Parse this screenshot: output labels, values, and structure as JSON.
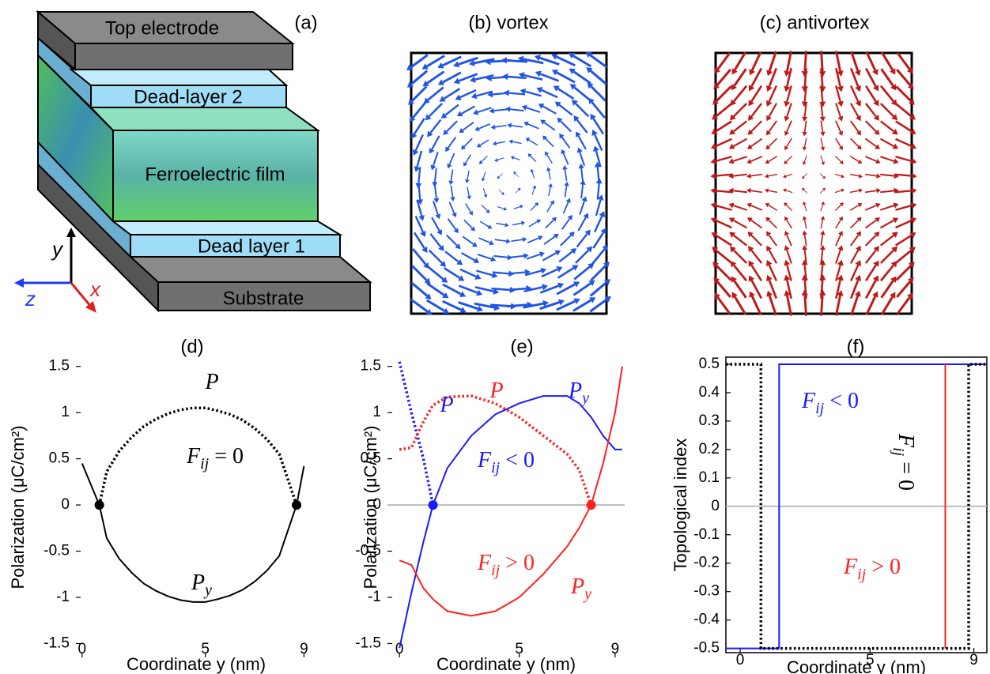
{
  "panels": {
    "a": {
      "label": "(a)",
      "layers": [
        "Top electrode",
        "Dead-layer 2",
        "Ferroelectric film",
        "Dead layer 1",
        "Substrate"
      ],
      "axes": [
        "y",
        "z",
        "x"
      ]
    },
    "b": {
      "label": "(b) vortex"
    },
    "c": {
      "label": "(c) antivortex"
    }
  },
  "chart_data": [
    {
      "type": "line",
      "title": "(d)",
      "xlabel": "Coordinate y (nm)",
      "ylabel": "Polarization (μC/cm²)",
      "x": [
        0,
        0.7,
        1,
        1.5,
        2,
        2.5,
        3,
        3.5,
        4,
        4.5,
        5,
        5.5,
        6,
        6.5,
        7,
        7.5,
        8,
        8.7,
        9
      ],
      "series": [
        {
          "color": "#000000",
          "style": "dotted",
          "values": [
            null,
            0,
            0.36,
            0.58,
            0.73,
            0.85,
            0.93,
            0.99,
            1.03,
            1.05,
            1.05,
            1.02,
            0.98,
            0.92,
            0.83,
            0.71,
            0.55,
            0,
            null
          ]
        },
        {
          "color": "#000000",
          "style": "solid",
          "values": [
            0.45,
            0,
            -0.36,
            -0.58,
            -0.73,
            -0.85,
            -0.93,
            -0.99,
            -1.03,
            -1.05,
            -1.05,
            -1.02,
            -0.98,
            -0.92,
            -0.83,
            -0.71,
            -0.55,
            0,
            0.42
          ]
        }
      ],
      "points": {
        "x": [
          0.7,
          8.7
        ],
        "values": [
          0,
          0
        ],
        "colors": [
          "#000000",
          "#000000"
        ]
      },
      "annotations": [
        {
          "main": "P",
          "color": "#000000"
        },
        {
          "main": "F",
          "sub": "ij",
          "rest": " = 0",
          "color": "#000000"
        },
        {
          "main": "P",
          "sub": "y",
          "color": "#000000"
        }
      ],
      "xlim": [
        -0.25,
        9.5
      ],
      "ylim": [
        -1.65,
        1.6
      ],
      "xticks": [
        0,
        5,
        9
      ],
      "yticks": [
        1.5,
        1,
        0.5,
        0,
        -0.5,
        -1,
        -1.5
      ],
      "zero_line": false,
      "frame": false
    },
    {
      "type": "line",
      "title": "(e)",
      "xlabel": "Coordinate y (nm)",
      "ylabel": "Polarization (μC/cm²)",
      "x": [
        0,
        0.5,
        1,
        1.4,
        2,
        3,
        4,
        5,
        6,
        7,
        7.5,
        8,
        8.5,
        9,
        9.3
      ],
      "series": [
        {
          "color": "#1a1aff",
          "style": "solid",
          "values": [
            -1.55,
            -0.95,
            -0.4,
            0,
            0.4,
            0.75,
            0.98,
            1.1,
            1.18,
            1.18,
            1.1,
            0.95,
            0.75,
            0.6,
            0.6
          ]
        },
        {
          "color": "#1a1aff",
          "style": "dotted",
          "values": [
            1.55,
            1.0,
            0.5,
            0,
            null,
            null,
            null,
            null,
            null,
            null,
            null,
            null,
            null,
            null,
            null
          ]
        },
        {
          "color": "#ff2020",
          "style": "dotted",
          "values": [
            0.6,
            0.62,
            0.9,
            1.08,
            1.17,
            1.18,
            1.1,
            0.95,
            0.75,
            0.55,
            0.38,
            0,
            null,
            null,
            null
          ]
        },
        {
          "color": "#ff2020",
          "style": "solid",
          "values": [
            -0.6,
            -0.65,
            -0.9,
            -1.02,
            -1.15,
            -1.2,
            -1.15,
            -1.0,
            -0.75,
            -0.45,
            -0.25,
            0,
            0.45,
            1.0,
            1.5
          ]
        }
      ],
      "points": {
        "x": [
          1.4,
          8
        ],
        "values": [
          0,
          0
        ],
        "colors": [
          "#1a1aff",
          "#ff2020"
        ]
      },
      "annotations": [
        {
          "main": "P",
          "color": "#1a1aff"
        },
        {
          "main": "P",
          "color": "#ff2020"
        },
        {
          "main": "P",
          "sub": "y",
          "color": "#1a1aff"
        },
        {
          "main": "F",
          "sub": "ij",
          "rest": " < 0",
          "color": "#1a1aff"
        },
        {
          "main": "F",
          "sub": "ij",
          "rest": " > 0",
          "color": "#ff2020"
        },
        {
          "main": "P",
          "sub": "y",
          "color": "#ff2020"
        }
      ],
      "xlim": [
        -0.5,
        9.4
      ],
      "ylim": [
        -1.65,
        1.6
      ],
      "xticks": [
        0,
        5,
        9
      ],
      "yticks": [
        1.5,
        1,
        0.5,
        0,
        -0.5,
        -1,
        -1.5
      ],
      "zero_line": true,
      "frame": false
    },
    {
      "type": "line",
      "title": "(f)",
      "xlabel": "Coordinate y (nm)",
      "ylabel": "Topological index",
      "series": [
        {
          "color": "#1a1aff",
          "style": "solid",
          "x": [
            -0.55,
            1.5,
            1.5,
            9.5
          ],
          "values": [
            -0.5,
            -0.5,
            0.5,
            0.5
          ]
        },
        {
          "color": "#ff2020",
          "style": "solid",
          "x": [
            7.9,
            7.9
          ],
          "values": [
            -0.5,
            0.5
          ]
        },
        {
          "color": "#000000",
          "style": "dotted",
          "x": [
            -0.55,
            0.8,
            0.8,
            8.8,
            8.8,
            9.5
          ],
          "values": [
            0.5,
            0.5,
            -0.5,
            -0.5,
            0.5,
            0.5
          ]
        }
      ],
      "annotations": [
        {
          "main": "F",
          "sub": "ij",
          "rest": " < 0",
          "color": "#1a1aff"
        },
        {
          "main": "F",
          "sub": "ij",
          "rest": " > 0",
          "color": "#ff2020"
        },
        {
          "main": "F",
          "sub": "ij",
          "rest": " = 0",
          "color": "#000000"
        }
      ],
      "xlim": [
        -0.55,
        9.5
      ],
      "ylim": [
        -0.515,
        0.525
      ],
      "xticks": [
        0,
        5,
        9
      ],
      "yticks": [
        0.5,
        0.4,
        0.3,
        0.2,
        0.1,
        0,
        -0.1,
        -0.2,
        -0.3,
        -0.4,
        -0.5
      ],
      "zero_line": true,
      "frame": true
    }
  ]
}
